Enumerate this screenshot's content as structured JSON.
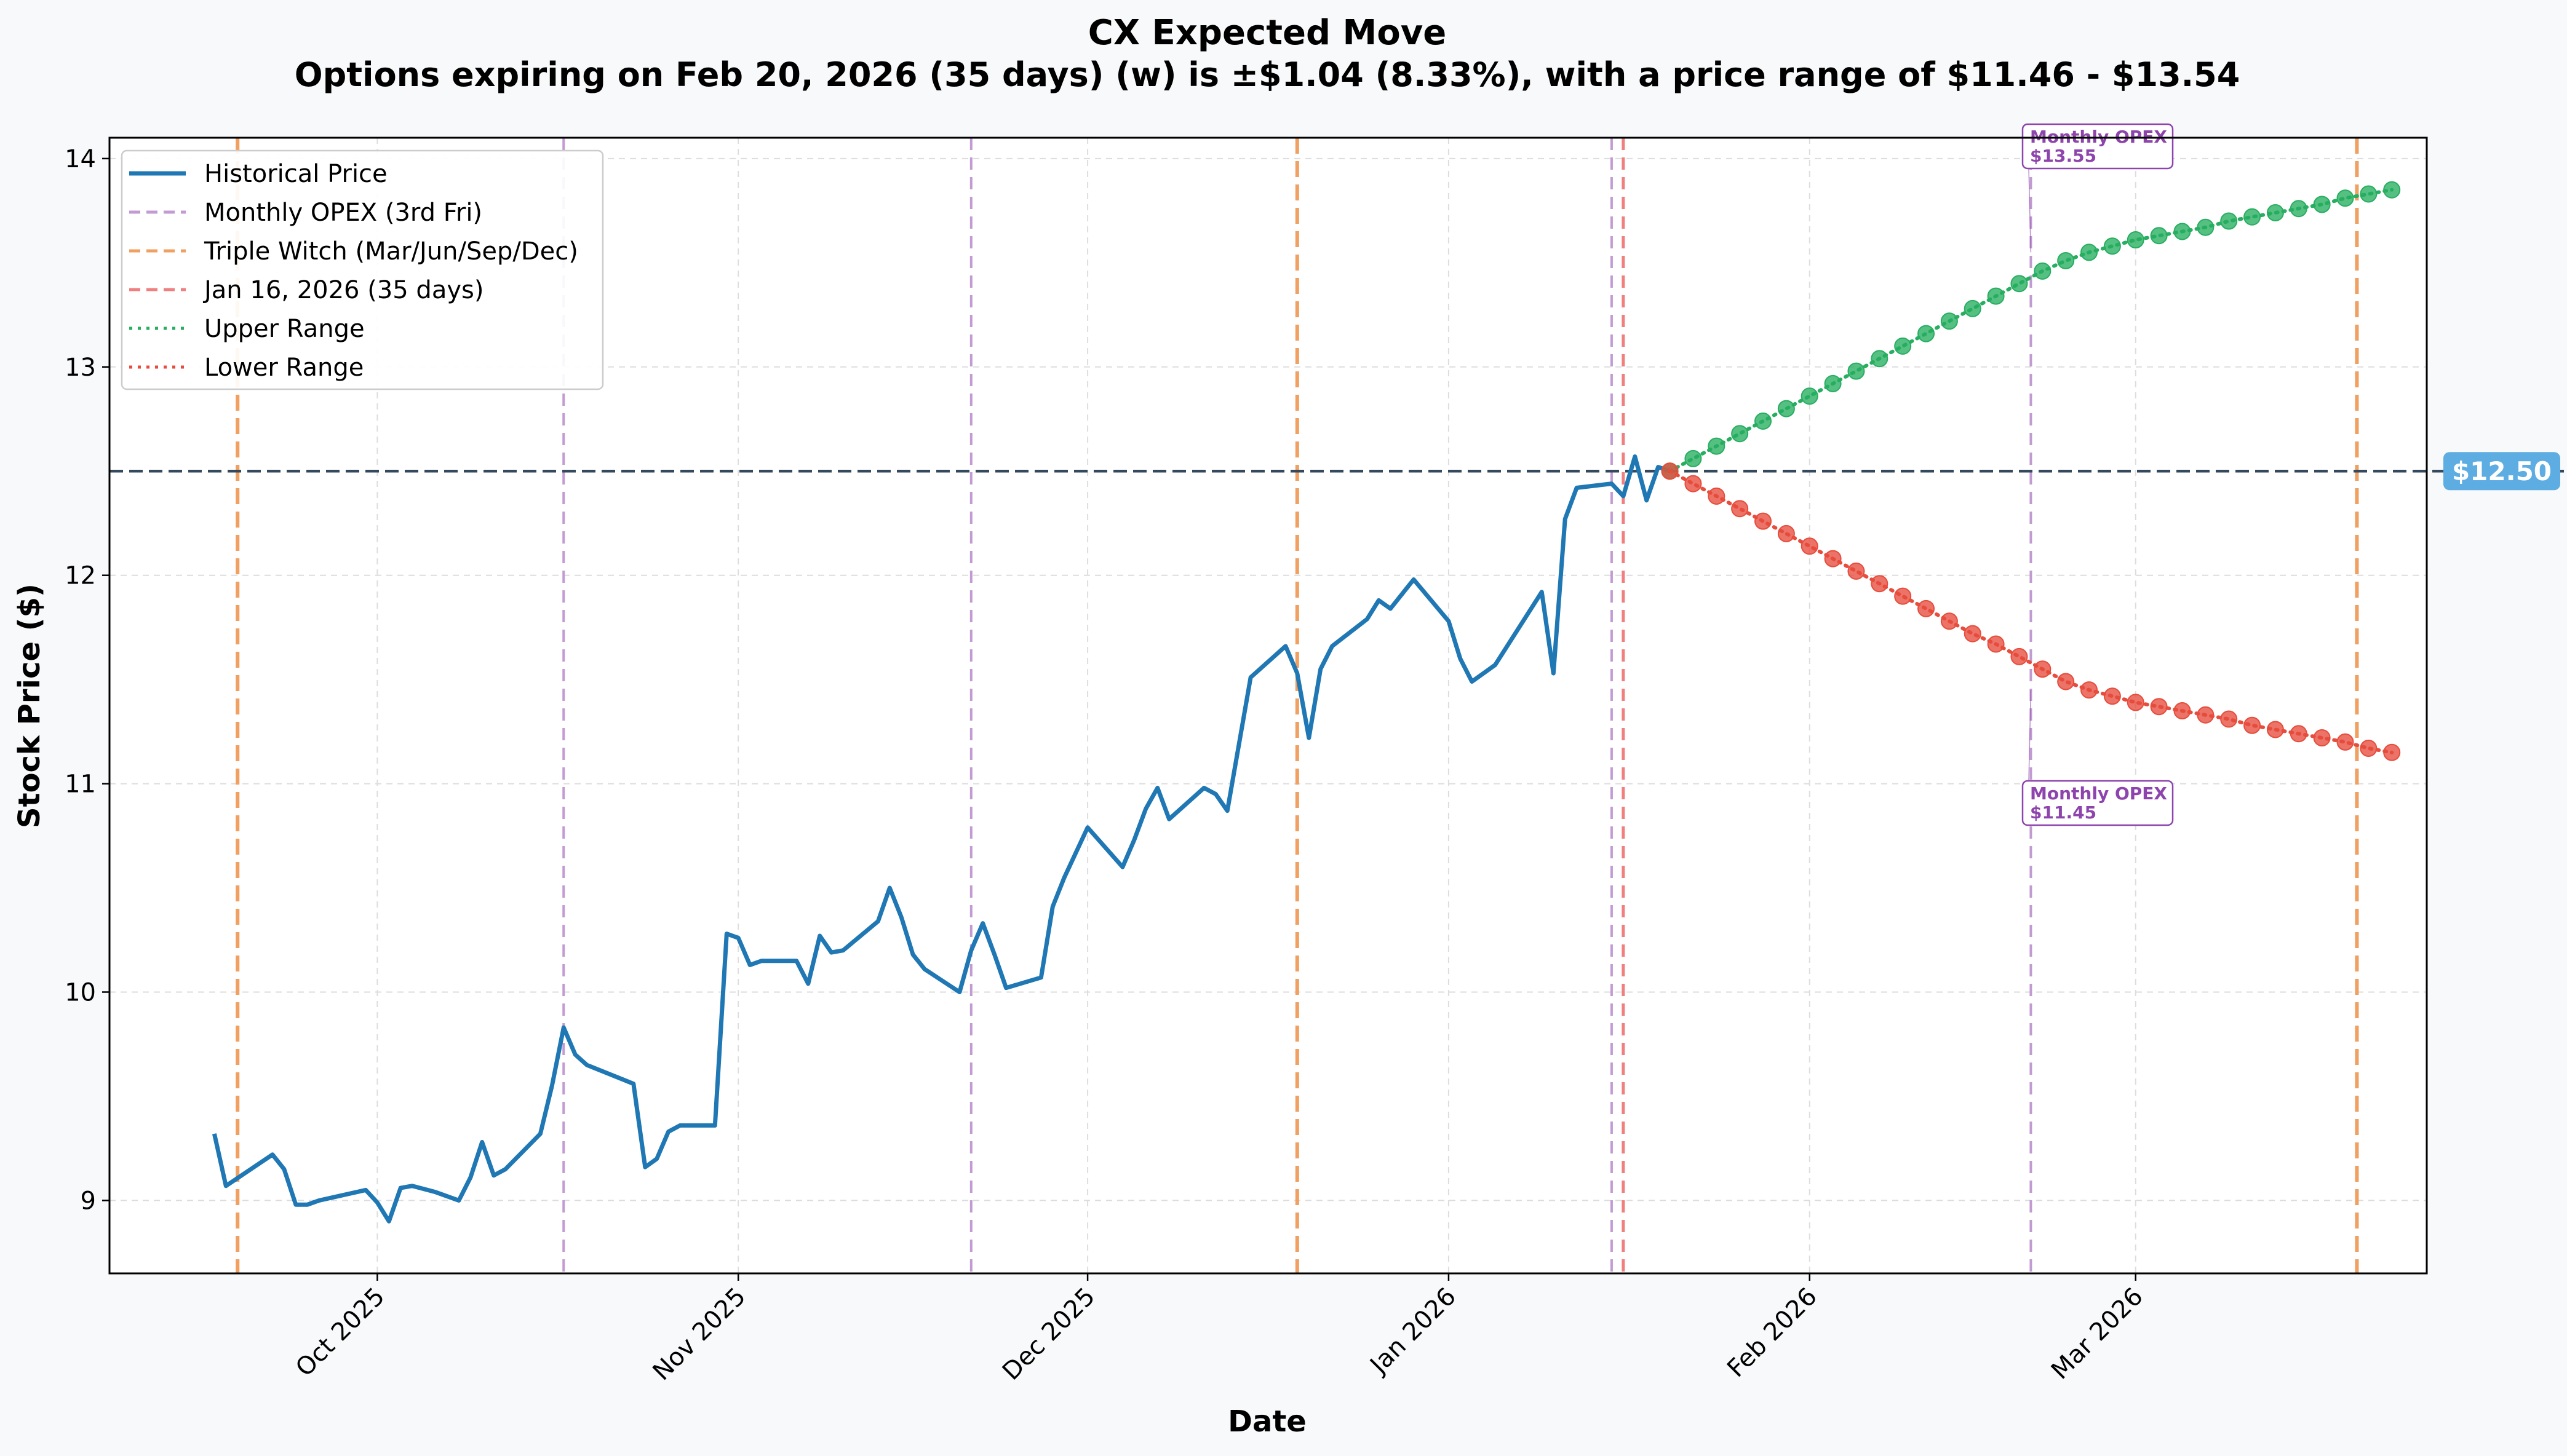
{
  "chart_data": {
    "type": "line",
    "title": "CX Expected Move",
    "subtitle": "Options expiring on Feb 20, 2026 (35 days) (w) is ±$1.04 (8.33%), with a price range of $11.46 - $13.54",
    "xlabel": "Date",
    "ylabel": "Stock Price ($)",
    "x_range": [
      "2025-09-08",
      "2026-03-26"
    ],
    "ylim": [
      8.65,
      14.1
    ],
    "yticks": [
      9,
      10,
      11,
      12,
      13,
      14
    ],
    "xticks": [
      {
        "date": "2025-10-01",
        "label": "Oct 2025"
      },
      {
        "date": "2025-11-01",
        "label": "Nov 2025"
      },
      {
        "date": "2025-12-01",
        "label": "Dec 2025"
      },
      {
        "date": "2026-01-01",
        "label": "Jan 2026"
      },
      {
        "date": "2026-02-01",
        "label": "Feb 2026"
      },
      {
        "date": "2026-03-01",
        "label": "Mar 2026"
      }
    ],
    "grid": true,
    "legend_position": "top-left",
    "current_price": 12.5,
    "current_price_label": "$12.50",
    "colors": {
      "historical": "#1f77b4",
      "monthly_opex": "#c39bd3",
      "triple_witch": "#f0a060",
      "today": "#f08080",
      "upper": "#27ae60",
      "lower": "#e74c3c",
      "price_line": "#34495e",
      "price_tag": "#5dade2",
      "annotation": "#8e44ad"
    },
    "legend": [
      {
        "label": "Historical Price",
        "style": "solid",
        "color": "#1f77b4"
      },
      {
        "label": "Monthly OPEX (3rd Fri)",
        "style": "dashed",
        "color": "#c39bd3"
      },
      {
        "label": "Triple Witch (Mar/Jun/Sep/Dec)",
        "style": "dashed",
        "color": "#f0a060"
      },
      {
        "label": "Jan 16, 2026 (35 days)",
        "style": "dashed",
        "color": "#f08080"
      },
      {
        "label": "Upper Range",
        "style": "dotted",
        "color": "#27ae60"
      },
      {
        "label": "Lower Range",
        "style": "dotted",
        "color": "#e74c3c"
      }
    ],
    "vlines": [
      {
        "date": "2025-09-19",
        "kind": "triple_witch"
      },
      {
        "date": "2025-10-17",
        "kind": "monthly_opex"
      },
      {
        "date": "2025-11-21",
        "kind": "monthly_opex"
      },
      {
        "date": "2025-12-19",
        "kind": "triple_witch"
      },
      {
        "date": "2026-01-15",
        "kind": "monthly_opex"
      },
      {
        "date": "2026-01-16",
        "kind": "today"
      },
      {
        "date": "2026-02-20",
        "kind": "monthly_opex"
      },
      {
        "date": "2026-03-20",
        "kind": "triple_witch"
      }
    ],
    "historical": [
      [
        "2025-09-17",
        9.32
      ],
      [
        "2025-09-18",
        9.07
      ],
      [
        "2025-09-22",
        9.22
      ],
      [
        "2025-09-23",
        9.15
      ],
      [
        "2025-09-24",
        8.98
      ],
      [
        "2025-09-25",
        8.98
      ],
      [
        "2025-09-26",
        9.0
      ],
      [
        "2025-09-30",
        9.05
      ],
      [
        "2025-10-01",
        8.99
      ],
      [
        "2025-10-02",
        8.9
      ],
      [
        "2025-10-03",
        9.06
      ],
      [
        "2025-10-04",
        9.07
      ],
      [
        "2025-10-06",
        9.04
      ],
      [
        "2025-10-08",
        9.0
      ],
      [
        "2025-10-09",
        9.11
      ],
      [
        "2025-10-10",
        9.28
      ],
      [
        "2025-10-11",
        9.12
      ],
      [
        "2025-10-12",
        9.15
      ],
      [
        "2025-10-15",
        9.32
      ],
      [
        "2025-10-16",
        9.55
      ],
      [
        "2025-10-17",
        9.83
      ],
      [
        "2025-10-18",
        9.7
      ],
      [
        "2025-10-19",
        9.65
      ],
      [
        "2025-10-23",
        9.56
      ],
      [
        "2025-10-24",
        9.16
      ],
      [
        "2025-10-25",
        9.2
      ],
      [
        "2025-10-26",
        9.33
      ],
      [
        "2025-10-27",
        9.36
      ],
      [
        "2025-10-28",
        9.36
      ],
      [
        "2025-10-30",
        9.36
      ],
      [
        "2025-10-31",
        10.28
      ],
      [
        "2025-11-01",
        10.26
      ],
      [
        "2025-11-02",
        10.13
      ],
      [
        "2025-11-03",
        10.15
      ],
      [
        "2025-11-05",
        10.15
      ],
      [
        "2025-11-06",
        10.15
      ],
      [
        "2025-11-07",
        10.04
      ],
      [
        "2025-11-08",
        10.27
      ],
      [
        "2025-11-09",
        10.19
      ],
      [
        "2025-11-10",
        10.2
      ],
      [
        "2025-11-13",
        10.34
      ],
      [
        "2025-11-14",
        10.5
      ],
      [
        "2025-11-15",
        10.36
      ],
      [
        "2025-11-16",
        10.18
      ],
      [
        "2025-11-17",
        10.11
      ],
      [
        "2025-11-20",
        10.0
      ],
      [
        "2025-11-21",
        10.2
      ],
      [
        "2025-11-22",
        10.33
      ],
      [
        "2025-11-23",
        10.18
      ],
      [
        "2025-11-24",
        10.02
      ],
      [
        "2025-11-27",
        10.07
      ],
      [
        "2025-11-28",
        10.41
      ],
      [
        "2025-11-29",
        10.55
      ],
      [
        "2025-12-01",
        10.79
      ],
      [
        "2025-12-04",
        10.6
      ],
      [
        "2025-12-05",
        10.73
      ],
      [
        "2025-12-06",
        10.88
      ],
      [
        "2025-12-07",
        10.98
      ],
      [
        "2025-12-08",
        10.83
      ],
      [
        "2025-12-11",
        10.98
      ],
      [
        "2025-12-12",
        10.95
      ],
      [
        "2025-12-13",
        10.87
      ],
      [
        "2025-12-15",
        11.51
      ],
      [
        "2025-12-18",
        11.66
      ],
      [
        "2025-12-19",
        11.53
      ],
      [
        "2025-12-20",
        11.22
      ],
      [
        "2025-12-21",
        11.55
      ],
      [
        "2025-12-22",
        11.66
      ],
      [
        "2025-12-25",
        11.79
      ],
      [
        "2025-12-26",
        11.88
      ],
      [
        "2025-12-27",
        11.84
      ],
      [
        "2025-12-29",
        11.98
      ],
      [
        "2026-01-01",
        11.78
      ],
      [
        "2026-01-02",
        11.6
      ],
      [
        "2026-01-03",
        11.49
      ],
      [
        "2026-01-05",
        11.57
      ],
      [
        "2026-01-09",
        11.92
      ],
      [
        "2026-01-10",
        11.53
      ],
      [
        "2026-01-11",
        12.27
      ],
      [
        "2026-01-12",
        12.42
      ],
      [
        "2026-01-15",
        12.44
      ],
      [
        "2026-01-16",
        12.38
      ],
      [
        "2026-01-17",
        12.57
      ],
      [
        "2026-01-18",
        12.36
      ],
      [
        "2026-01-19",
        12.52
      ],
      [
        "2026-01-20",
        12.5
      ]
    ],
    "upper_range": [
      [
        "2026-01-20",
        12.5
      ],
      [
        "2026-01-22",
        12.56
      ],
      [
        "2026-01-24",
        12.62
      ],
      [
        "2026-01-26",
        12.68
      ],
      [
        "2026-01-28",
        12.74
      ],
      [
        "2026-01-30",
        12.8
      ],
      [
        "2026-02-01",
        12.86
      ],
      [
        "2026-02-03",
        12.92
      ],
      [
        "2026-02-05",
        12.98
      ],
      [
        "2026-02-07",
        13.04
      ],
      [
        "2026-02-09",
        13.1
      ],
      [
        "2026-02-11",
        13.16
      ],
      [
        "2026-02-13",
        13.22
      ],
      [
        "2026-02-15",
        13.28
      ],
      [
        "2026-02-17",
        13.34
      ],
      [
        "2026-02-19",
        13.4
      ],
      [
        "2026-02-21",
        13.46
      ],
      [
        "2026-02-23",
        13.51
      ],
      [
        "2026-02-25",
        13.55
      ],
      [
        "2026-02-27",
        13.58
      ],
      [
        "2026-03-01",
        13.61
      ],
      [
        "2026-03-03",
        13.63
      ],
      [
        "2026-03-05",
        13.65
      ],
      [
        "2026-03-07",
        13.67
      ],
      [
        "2026-03-09",
        13.7
      ],
      [
        "2026-03-11",
        13.72
      ],
      [
        "2026-03-13",
        13.74
      ],
      [
        "2026-03-15",
        13.76
      ],
      [
        "2026-03-17",
        13.78
      ],
      [
        "2026-03-19",
        13.81
      ],
      [
        "2026-03-21",
        13.83
      ],
      [
        "2026-03-23",
        13.85
      ]
    ],
    "lower_range": [
      [
        "2026-01-20",
        12.5
      ],
      [
        "2026-01-22",
        12.44
      ],
      [
        "2026-01-24",
        12.38
      ],
      [
        "2026-01-26",
        12.32
      ],
      [
        "2026-01-28",
        12.26
      ],
      [
        "2026-01-30",
        12.2
      ],
      [
        "2026-02-01",
        12.14
      ],
      [
        "2026-02-03",
        12.08
      ],
      [
        "2026-02-05",
        12.02
      ],
      [
        "2026-02-07",
        11.96
      ],
      [
        "2026-02-09",
        11.9
      ],
      [
        "2026-02-11",
        11.84
      ],
      [
        "2026-02-13",
        11.78
      ],
      [
        "2026-02-15",
        11.72
      ],
      [
        "2026-02-17",
        11.67
      ],
      [
        "2026-02-19",
        11.61
      ],
      [
        "2026-02-21",
        11.55
      ],
      [
        "2026-02-23",
        11.49
      ],
      [
        "2026-02-25",
        11.45
      ],
      [
        "2026-02-27",
        11.42
      ],
      [
        "2026-03-01",
        11.39
      ],
      [
        "2026-03-03",
        11.37
      ],
      [
        "2026-03-05",
        11.35
      ],
      [
        "2026-03-07",
        11.33
      ],
      [
        "2026-03-09",
        11.31
      ],
      [
        "2026-03-11",
        11.28
      ],
      [
        "2026-03-13",
        11.26
      ],
      [
        "2026-03-15",
        11.24
      ],
      [
        "2026-03-17",
        11.22
      ],
      [
        "2026-03-19",
        11.2
      ],
      [
        "2026-03-21",
        11.17
      ],
      [
        "2026-03-23",
        11.15
      ]
    ],
    "annotations": [
      {
        "line1": "Monthly OPEX",
        "line2": "$13.55",
        "date": "2026-02-20",
        "value": 13.55,
        "placement": "above"
      },
      {
        "line1": "Monthly OPEX",
        "line2": "$11.45",
        "date": "2026-02-20",
        "value": 11.45,
        "placement": "below"
      }
    ]
  }
}
